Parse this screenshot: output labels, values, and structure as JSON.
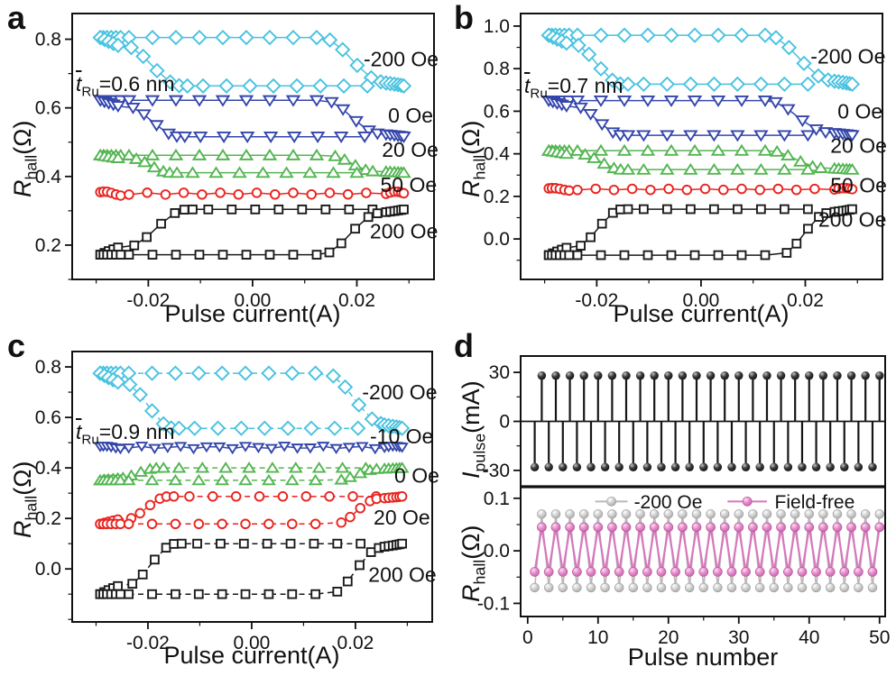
{
  "figure": {
    "bg": "#ffffff",
    "ink": "#111111"
  },
  "panels": [
    {
      "letter": "a",
      "xlabel": "Pulse current(A)",
      "ylabel": {
        "v": "R",
        "sub": "hall",
        "unit": "(Ω)"
      },
      "annotation": {
        "v": "t",
        "sub": "Ru",
        "rest": "=0.6 nm"
      }
    },
    {
      "letter": "b",
      "xlabel": "Pulse current(A)",
      "ylabel": {
        "v": "R",
        "sub": "hall",
        "unit": "(Ω)"
      },
      "annotation": {
        "v": "t",
        "sub": "Ru",
        "rest": "=0.7 nm"
      }
    },
    {
      "letter": "c",
      "xlabel": "Pulse current(A)",
      "ylabel": {
        "v": "R",
        "sub": "hall",
        "unit": "(Ω)"
      },
      "annotation": {
        "v": "t",
        "sub": "Ru",
        "rest": "=0.9 nm"
      }
    },
    {
      "letter": "d",
      "xlabel": "Pulse number",
      "ylabel_top": {
        "v": "I",
        "sub": "pulse",
        "unit": "(mA)"
      },
      "ylabel_bottom": {
        "v": "R",
        "sub": "hall",
        "unit": "(Ω)"
      }
    }
  ],
  "chart_data": [
    {
      "id": "a",
      "type": "line",
      "xlabel": "Pulse current(A)",
      "ylabel": "R_hall (Ohm)",
      "xlim": [
        -0.0346,
        0.0348
      ],
      "ylim": [
        0.1,
        0.875
      ],
      "xticks": [
        -0.02,
        0,
        0.02
      ],
      "xtick_labels": [
        "-0.02",
        "0.00",
        "0.02"
      ],
      "x_minor_step": 0.01,
      "yticks": [
        0.2,
        0.4,
        0.6,
        0.8
      ],
      "ytick_labels": [
        "0.2",
        "0.4",
        "0.6",
        "0.8"
      ],
      "y_minor_step": 0.1,
      "series": [
        {
          "name": "-200 Oe",
          "marker": "diamond",
          "color": "#48c2e0",
          "ms": 1.12,
          "loop": {
            "dir": "hl",
            "high": 0.805,
            "low": 0.664,
            "neg": [
              -0.025,
              -0.0135
            ],
            "pos": [
              0.013,
              0.0252
            ]
          },
          "label_pos": [
            0.0213,
            0.742
          ]
        },
        {
          "name": "0 Oe",
          "marker": "tridown",
          "color": "#3446ab",
          "loop": {
            "dir": "hl",
            "high": 0.622,
            "low": 0.516,
            "neg": [
              -0.0245,
              -0.014
            ],
            "pos": [
              0.0135,
              0.0245
            ]
          },
          "label_pos": [
            0.026,
            0.578
          ]
        },
        {
          "name": "20 Oe",
          "marker": "triup",
          "color": "#53b551",
          "loop": {
            "dir": "hl",
            "high": 0.462,
            "low": 0.411,
            "neg": [
              -0.0235,
              -0.0155
            ],
            "pos": [
              0.0145,
              0.0235
            ]
          },
          "label_pos": [
            0.0248,
            0.478
          ]
        },
        {
          "name": "50 Oe",
          "marker": "circle",
          "color": "#e8241f",
          "step": 0.0035,
          "loop": {
            "dir": "flat",
            "high": 0.356,
            "low": 0.344
          },
          "label_pos": [
            0.0245,
            0.376
          ]
        },
        {
          "name": "200 Oe",
          "marker": "square",
          "color": "#1a1a1a",
          "loop": {
            "dir": "lh",
            "high": 0.304,
            "low": 0.172,
            "neg": [
              -0.0245,
              -0.0125
            ],
            "pos": [
              0.013,
              0.0245
            ]
          },
          "label_pos": [
            0.0225,
            0.24
          ]
        }
      ]
    },
    {
      "id": "b",
      "type": "line",
      "xlabel": "Pulse current(A)",
      "ylabel": "R_hall (Ohm)",
      "xlim": [
        -0.0346,
        0.0348
      ],
      "ylim": [
        -0.19,
        1.059
      ],
      "xticks": [
        -0.02,
        0,
        0.02
      ],
      "xtick_labels": [
        "-0.02",
        "0.00",
        "0.02"
      ],
      "x_minor_step": 0.01,
      "yticks": [
        0,
        0.2,
        0.4,
        0.6,
        0.8,
        1.0
      ],
      "ytick_labels": [
        "0.0",
        "0.2",
        "0.4",
        "0.6",
        "0.8",
        "1.0"
      ],
      "y_minor_step": 0.1,
      "series": [
        {
          "name": "-200 Oe",
          "marker": "diamond",
          "color": "#48c2e0",
          "ms": 1.12,
          "loop": {
            "dir": "hl",
            "high": 0.957,
            "low": 0.727,
            "neg": [
              -0.025,
              -0.015
            ],
            "pos": [
              0.0125,
              0.025
            ]
          },
          "label_pos": [
            0.021,
            0.858
          ]
        },
        {
          "name": "0 Oe",
          "marker": "tridown",
          "color": "#3446ab",
          "loop": {
            "dir": "hl",
            "high": 0.65,
            "low": 0.487,
            "neg": [
              -0.0245,
              -0.015
            ],
            "pos": [
              0.0125,
              0.0245
            ]
          },
          "label_pos": [
            0.0262,
            0.6
          ]
        },
        {
          "name": "20 Oe",
          "marker": "triup",
          "color": "#53b551",
          "loop": {
            "dir": "hl",
            "high": 0.415,
            "low": 0.326,
            "neg": [
              -0.0235,
              -0.015
            ],
            "pos": [
              0.013,
              0.0235
            ]
          },
          "label_pos": [
            0.0248,
            0.438
          ]
        },
        {
          "name": "50 Oe",
          "marker": "circle",
          "color": "#e8241f",
          "step": 0.0035,
          "loop": {
            "dir": "flat",
            "high": 0.239,
            "low": 0.227
          },
          "label_pos": [
            0.0248,
            0.252
          ]
        },
        {
          "name": "200 Oe",
          "marker": "square",
          "color": "#1a1a1a",
          "loop": {
            "dir": "lh",
            "high": 0.14,
            "low": -0.076,
            "neg": [
              -0.0245,
              -0.015
            ],
            "pos": [
              0.015,
              0.0245
            ]
          },
          "label_pos": [
            0.0225,
            0.092
          ]
        }
      ]
    },
    {
      "id": "c",
      "type": "line",
      "xlabel": "Pulse current(A)",
      "ylabel": "R_hall (Ohm)",
      "xlim": [
        -0.0346,
        0.0348
      ],
      "ylim": [
        -0.21,
        0.861
      ],
      "xticks": [
        -0.02,
        0,
        0.02
      ],
      "xtick_labels": [
        "-0.02",
        "0.00",
        "0.02"
      ],
      "x_minor_step": 0.01,
      "yticks": [
        0,
        0.2,
        0.4,
        0.6,
        0.8
      ],
      "ytick_labels": [
        "0.0",
        "0.2",
        "0.4",
        "0.6",
        "0.8"
      ],
      "y_minor_step": 0.1,
      "series": [
        {
          "name": "-200 Oe",
          "marker": "diamond",
          "color": "#48c2e0",
          "ms": 1.12,
          "dash": true,
          "loop": {
            "dir": "hl",
            "high": 0.775,
            "low": 0.557,
            "neg": [
              -0.025,
              -0.015
            ],
            "pos": [
              0.014,
              0.0255
            ]
          },
          "label_pos": [
            0.0213,
            0.7
          ]
        },
        {
          "name": "-10 Oe",
          "marker": "tridown",
          "color": "#3446ab",
          "step": 0.0025,
          "ms": 0.85,
          "loop": {
            "dir": "flat",
            "high": 0.486,
            "low": 0.476
          },
          "label_pos": [
            0.0228,
            0.525
          ]
        },
        {
          "name": "0 Oe",
          "marker": "triup",
          "color": "#53b551",
          "ms": 0.95,
          "dash": true,
          "loop": {
            "dir": "lh",
            "high": 0.4,
            "low": 0.351,
            "neg": [
              -0.026,
              -0.018
            ],
            "pos": [
              0.016,
              0.0245
            ]
          },
          "label_pos": [
            0.0275,
            0.371
          ]
        },
        {
          "name": "20 Oe",
          "marker": "circle",
          "color": "#e8241f",
          "dash": true,
          "loop": {
            "dir": "lh",
            "high": 0.287,
            "low": 0.178,
            "neg": [
              -0.0245,
              -0.016
            ],
            "pos": [
              0.016,
              0.0245
            ]
          },
          "label_pos": [
            0.0235,
            0.205
          ]
        },
        {
          "name": "200 Oe",
          "marker": "square",
          "color": "#1a1a1a",
          "dash": true,
          "loop": {
            "dir": "lh",
            "high": 0.1,
            "low": -0.1,
            "neg": [
              -0.0245,
              -0.0145
            ],
            "pos": [
              0.015,
              0.025
            ]
          },
          "label_pos": [
            0.0225,
            -0.022
          ]
        }
      ]
    },
    {
      "id": "d_top",
      "type": "stem",
      "ylabel": "I_pulse (mA)",
      "n_pulses": 50,
      "odd_value_mA": -28,
      "even_value_mA": 28,
      "color": "#161616",
      "xlim": [
        -1,
        50.8
      ],
      "ylim": [
        -40,
        40
      ],
      "yticks": [
        -30,
        0,
        30
      ],
      "ytick_labels": [
        "-30",
        "0",
        "30"
      ],
      "y_minor_step": 15
    },
    {
      "id": "d_bot",
      "type": "line",
      "xlabel": "Pulse number",
      "ylabel": "R_hall (Ohm)",
      "xlim": [
        -1,
        50.8
      ],
      "ylim": [
        -0.125,
        0.122
      ],
      "yticks": [
        -0.1,
        0,
        0.1
      ],
      "ytick_labels": [
        "-0.1",
        "0.0",
        "0.1"
      ],
      "y_minor_step": 0.05,
      "xticks": [
        0,
        10,
        20,
        30,
        40,
        50
      ],
      "xtick_labels": [
        "0",
        "10",
        "20",
        "30",
        "40",
        "50"
      ],
      "x_minor_step": 5,
      "series": [
        {
          "name": "-200 Oe",
          "n": 50,
          "odd": -0.07,
          "even": 0.07,
          "line_color": "#b9b9b9",
          "ball": "gray"
        },
        {
          "name": "Field-free",
          "n": 50,
          "odd": -0.04,
          "even": 0.045,
          "line_color": "#d678bc",
          "ball": "pink"
        }
      ],
      "legend": {
        "y": 0.094,
        "entries": [
          {
            "label": "-200 Oe",
            "line": [
              9.6,
              14.2
            ],
            "ball_x": 11.9,
            "text_x": 15.1
          },
          {
            "label": "Field-free",
            "line": [
              28.4,
              34.0
            ],
            "ball_x": 31.2,
            "text_x": 35.1
          }
        ]
      }
    }
  ]
}
